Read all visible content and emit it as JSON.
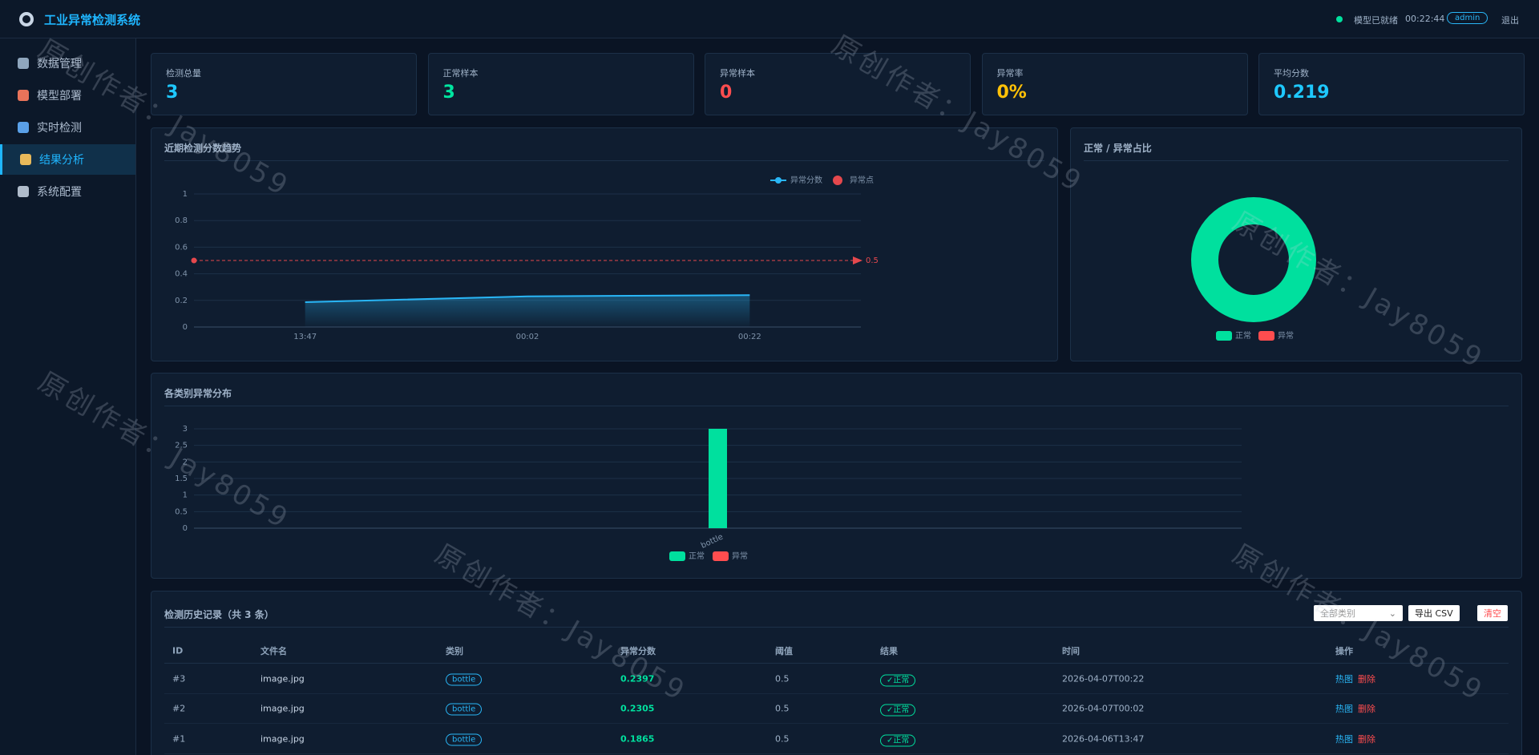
{
  "header": {
    "title": "工业异常检测系统",
    "status": "模型已就绪",
    "time": "00:22:44",
    "user": "admin",
    "logout": "退出"
  },
  "sidebar": {
    "items": [
      "数据管理",
      "模型部署",
      "实时检测",
      "结果分析",
      "系统配置"
    ]
  },
  "stats": [
    {
      "label": "检测总量",
      "value": 3
    },
    {
      "label": "正常样本",
      "value": 3
    },
    {
      "label": "异常样本",
      "value": 0
    },
    {
      "label": "异常率",
      "value": "0%"
    },
    {
      "label": "平均分数",
      "value": 0.219
    }
  ],
  "watermark": "原创作者：Jay8059",
  "chart_data": [
    {
      "type": "line",
      "title": "近期检测分数趋势",
      "x": [
        "13:47",
        "00:02",
        "00:22"
      ],
      "series": [
        {
          "name": "异常分数",
          "kind": "line",
          "color": "#29b6f6",
          "values": [
            0.1865,
            0.2305,
            0.2397
          ]
        },
        {
          "name": "异常点",
          "kind": "scatter",
          "color": "#e5484d",
          "values": [
            null,
            null,
            null
          ]
        }
      ],
      "threshold": 0.5,
      "threshold_color": "#e5484d",
      "ylim": [
        0,
        1
      ],
      "yticks": [
        0,
        0.2,
        0.4,
        0.6,
        0.8,
        1
      ],
      "grid": true
    },
    {
      "type": "pie",
      "title": "正常 / 异常占比",
      "categories": [
        "正常",
        "异常"
      ],
      "values": [
        3,
        0
      ],
      "colors": [
        "#00e09e",
        "#ff4d4f"
      ],
      "donut": true
    },
    {
      "type": "bar",
      "title": "各类别异常分布",
      "categories": [
        "bottle"
      ],
      "series": [
        {
          "name": "正常",
          "color": "#00e09e",
          "values": [
            3
          ]
        },
        {
          "name": "异常",
          "color": "#ff4d4f",
          "values": [
            0
          ]
        }
      ],
      "stacked": true,
      "ylim": [
        0,
        3
      ],
      "yticks": [
        0,
        0.5,
        1,
        1.5,
        2,
        2.5,
        3
      ],
      "grid": true
    }
  ],
  "table": {
    "title": "检测历史记录（共 3 条）",
    "filter": "全部类别",
    "export": "导出 CSV",
    "clear": "清空",
    "columns": [
      "ID",
      "文件名",
      "类别",
      "异常分数",
      "阈值",
      "结果",
      "时间",
      "操作"
    ],
    "rows": [
      [
        "#3",
        "image.jpg",
        "bottle",
        0.2397,
        0.5,
        "✓正常",
        "2026-04-07T00:22",
        "热图",
        "删除"
      ],
      [
        "#2",
        "image.jpg",
        "bottle",
        0.2305,
        0.5,
        "✓正常",
        "2026-04-07T00:02",
        "热图",
        "删除"
      ],
      [
        "#1",
        "image.jpg",
        "bottle",
        0.1865,
        0.5,
        "✓正常",
        "2026-04-06T13:47",
        "热图",
        "删除"
      ]
    ]
  }
}
